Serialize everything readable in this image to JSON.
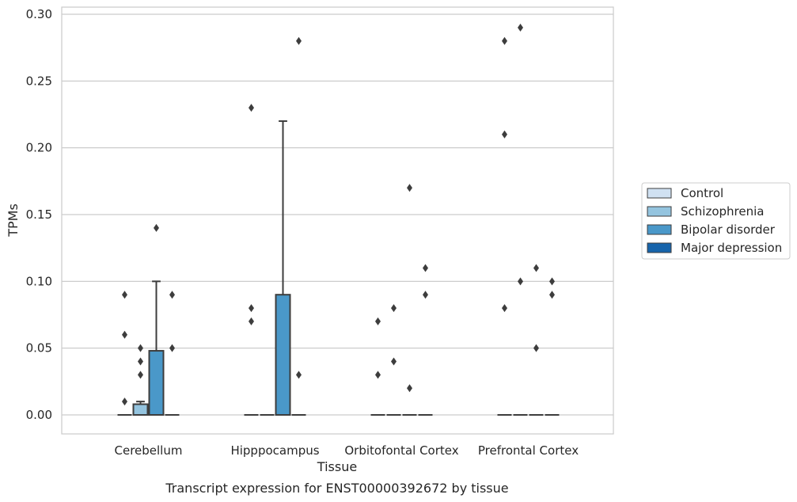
{
  "chart_data": {
    "type": "box",
    "caption": "Transcript expression for ENST00000392672 by tissue",
    "xlabel": "Tissue",
    "ylabel": "TPMs",
    "ylim": [
      -0.014,
      0.305
    ],
    "yticks": [
      0.0,
      0.05,
      0.1,
      0.15,
      0.2,
      0.25,
      0.3
    ],
    "ytick_labels": [
      "0.00",
      "0.05",
      "0.10",
      "0.15",
      "0.20",
      "0.25",
      "0.30"
    ],
    "grid": "horizontal",
    "legend_position": "right",
    "categories": [
      "Cerebellum",
      "Hipppocampus",
      "Orbitofontal Cortex",
      "Prefrontal Cortex"
    ],
    "series": [
      {
        "name": "Control",
        "color": "#d0e1f2",
        "boxes": [
          {
            "q1": 0,
            "median": 0,
            "q3": 0,
            "whisker_low": 0,
            "whisker_high": 0,
            "outliers": [
              0.09,
              0.06,
              0.01
            ]
          },
          {
            "q1": 0,
            "median": 0,
            "q3": 0,
            "whisker_low": 0,
            "whisker_high": 0,
            "outliers": [
              0.23,
              0.08,
              0.07
            ]
          },
          {
            "q1": 0,
            "median": 0,
            "q3": 0,
            "whisker_low": 0,
            "whisker_high": 0,
            "outliers": [
              0.07,
              0.03
            ]
          },
          {
            "q1": 0,
            "median": 0,
            "q3": 0,
            "whisker_low": 0,
            "whisker_high": 0,
            "outliers": [
              0.28,
              0.21,
              0.08
            ]
          }
        ]
      },
      {
        "name": "Schizophrenia",
        "color": "#94c4df",
        "boxes": [
          {
            "q1": 0,
            "median": 0,
            "q3": 0.008,
            "whisker_low": 0,
            "whisker_high": 0.01,
            "outliers": [
              0.05,
              0.04,
              0.03
            ]
          },
          {
            "q1": 0,
            "median": 0,
            "q3": 0,
            "whisker_low": 0,
            "whisker_high": 0,
            "outliers": []
          },
          {
            "q1": 0,
            "median": 0,
            "q3": 0,
            "whisker_low": 0,
            "whisker_high": 0,
            "outliers": [
              0.08,
              0.04
            ]
          },
          {
            "q1": 0,
            "median": 0,
            "q3": 0,
            "whisker_low": 0,
            "whisker_high": 0,
            "outliers": [
              0.29,
              0.1
            ]
          }
        ]
      },
      {
        "name": "Bipolar disorder",
        "color": "#4a98c9",
        "boxes": [
          {
            "q1": 0,
            "median": 0,
            "q3": 0.048,
            "whisker_low": 0,
            "whisker_high": 0.1,
            "outliers": [
              0.14
            ]
          },
          {
            "q1": 0,
            "median": 0,
            "q3": 0.09,
            "whisker_low": 0,
            "whisker_high": 0.22,
            "outliers": []
          },
          {
            "q1": 0,
            "median": 0,
            "q3": 0,
            "whisker_low": 0,
            "whisker_high": 0,
            "outliers": [
              0.17,
              0.02
            ]
          },
          {
            "q1": 0,
            "median": 0,
            "q3": 0,
            "whisker_low": 0,
            "whisker_high": 0,
            "outliers": [
              0.11,
              0.05
            ]
          }
        ]
      },
      {
        "name": "Major depression",
        "color": "#1764ab",
        "boxes": [
          {
            "q1": 0,
            "median": 0,
            "q3": 0,
            "whisker_low": 0,
            "whisker_high": 0,
            "outliers": [
              0.09,
              0.05
            ]
          },
          {
            "q1": 0,
            "median": 0,
            "q3": 0,
            "whisker_low": 0,
            "whisker_high": 0,
            "outliers": [
              0.28,
              0.03
            ]
          },
          {
            "q1": 0,
            "median": 0,
            "q3": 0,
            "whisker_low": 0,
            "whisker_high": 0,
            "outliers": [
              0.11,
              0.09
            ]
          },
          {
            "q1": 0,
            "median": 0,
            "q3": 0,
            "whisker_low": 0,
            "whisker_high": 0,
            "outliers": [
              0.1,
              0.09
            ]
          }
        ]
      }
    ]
  }
}
